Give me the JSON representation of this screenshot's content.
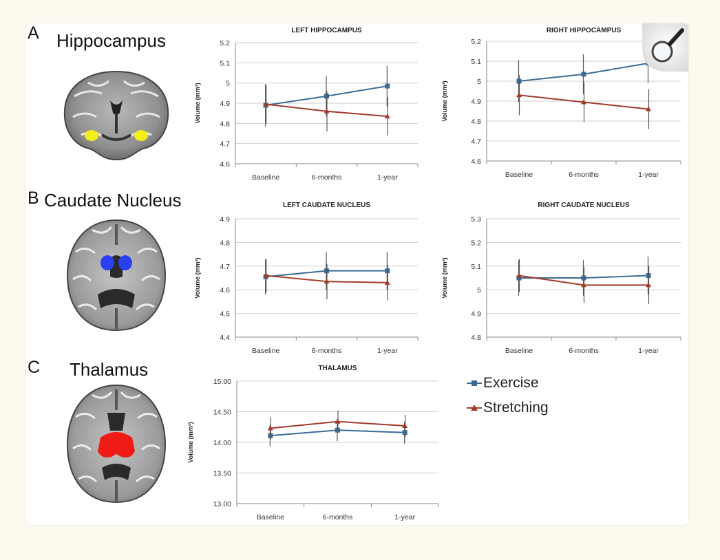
{
  "panels": {
    "a": {
      "letter": "A",
      "title": "Hippocampus"
    },
    "b": {
      "letter": "B",
      "title": "Caudate Nucleus"
    },
    "c": {
      "letter": "C",
      "title": "Thalamus"
    }
  },
  "legend": {
    "exercise": "Exercise",
    "stretching": "Stretching"
  },
  "colors": {
    "exercise": "#3b6b95",
    "stretching": "#a23a2c",
    "hippocampus": "#f2ee1a",
    "caudate": "#2a3ff0",
    "thalamus": "#ee1c14",
    "grid": "#cfcfcf",
    "axis": "#888888"
  },
  "icons": {
    "zoom": "magnifier-icon"
  },
  "chart_data": [
    {
      "type": "line",
      "title": "LEFT HIPPOCAMPUS",
      "ylabel": "Volume (mm³)",
      "categories": [
        "Baseline",
        "6-months",
        "1-year"
      ],
      "yticks": [
        "4.6",
        "4.7",
        "4.8",
        "4.9",
        "5",
        "5.1",
        "5.2"
      ],
      "ylim": [
        4.6,
        5.2
      ],
      "series": [
        {
          "name": "Exercise",
          "values": [
            4.89,
            4.935,
            4.985
          ],
          "err": [
            0.105,
            0.1,
            0.1
          ]
        },
        {
          "name": "Stretching",
          "values": [
            4.895,
            4.86,
            4.835
          ],
          "err": [
            0.095,
            0.1,
            0.095
          ]
        }
      ]
    },
    {
      "type": "line",
      "title": "RIGHT HIPPOCAMPUS",
      "ylabel": "Volume (mm³)",
      "categories": [
        "Baseline",
        "6-months",
        "1-year"
      ],
      "yticks": [
        "4.6",
        "4.7",
        "4.8",
        "4.9",
        "5",
        "5.1",
        "5.2"
      ],
      "ylim": [
        4.6,
        5.2
      ],
      "series": [
        {
          "name": "Exercise",
          "values": [
            5.0,
            5.035,
            5.09
          ],
          "err": [
            0.105,
            0.1,
            0.1
          ]
        },
        {
          "name": "Stretching",
          "values": [
            4.93,
            4.895,
            4.86
          ],
          "err": [
            0.1,
            0.1,
            0.1
          ]
        }
      ]
    },
    {
      "type": "line",
      "title": "LEFT CAUDATE NUCLEUS",
      "ylabel": "Volume (mm³)",
      "categories": [
        "Baseline",
        "6-months",
        "1-year"
      ],
      "yticks": [
        "4.4",
        "4.5",
        "4.6",
        "4.7",
        "4.8",
        "4.9"
      ],
      "ylim": [
        4.4,
        4.9
      ],
      "series": [
        {
          "name": "Exercise",
          "values": [
            4.655,
            4.68,
            4.68
          ],
          "err": [
            0.075,
            0.08,
            0.08
          ]
        },
        {
          "name": "Stretching",
          "values": [
            4.66,
            4.635,
            4.63
          ],
          "err": [
            0.07,
            0.075,
            0.075
          ]
        }
      ]
    },
    {
      "type": "line",
      "title": "RIGHT CAUDATE NUCLEUS",
      "ylabel": "Volume (mm³)",
      "categories": [
        "Baseline",
        "6-months",
        "1-year"
      ],
      "yticks": [
        "4.8",
        "4.9",
        "5",
        "5.1",
        "5.2",
        "5.3"
      ],
      "ylim": [
        4.8,
        5.3
      ],
      "series": [
        {
          "name": "Exercise",
          "values": [
            5.05,
            5.05,
            5.06
          ],
          "err": [
            0.075,
            0.075,
            0.08
          ]
        },
        {
          "name": "Stretching",
          "values": [
            5.06,
            5.02,
            5.02
          ],
          "err": [
            0.07,
            0.075,
            0.08
          ]
        }
      ]
    },
    {
      "type": "line",
      "title": "THALAMUS",
      "ylabel": "Volume (mm³)",
      "categories": [
        "Baseline",
        "6-months",
        "1-year"
      ],
      "yticks": [
        "13.00",
        "13.50",
        "14.00",
        "14.50",
        "15.00"
      ],
      "ylim": [
        13.0,
        15.0
      ],
      "series": [
        {
          "name": "Exercise",
          "values": [
            14.11,
            14.2,
            14.16
          ],
          "err": [
            0.18,
            0.18,
            0.18
          ]
        },
        {
          "name": "Stretching",
          "values": [
            14.23,
            14.34,
            14.27
          ],
          "err": [
            0.18,
            0.18,
            0.18
          ]
        }
      ]
    }
  ]
}
